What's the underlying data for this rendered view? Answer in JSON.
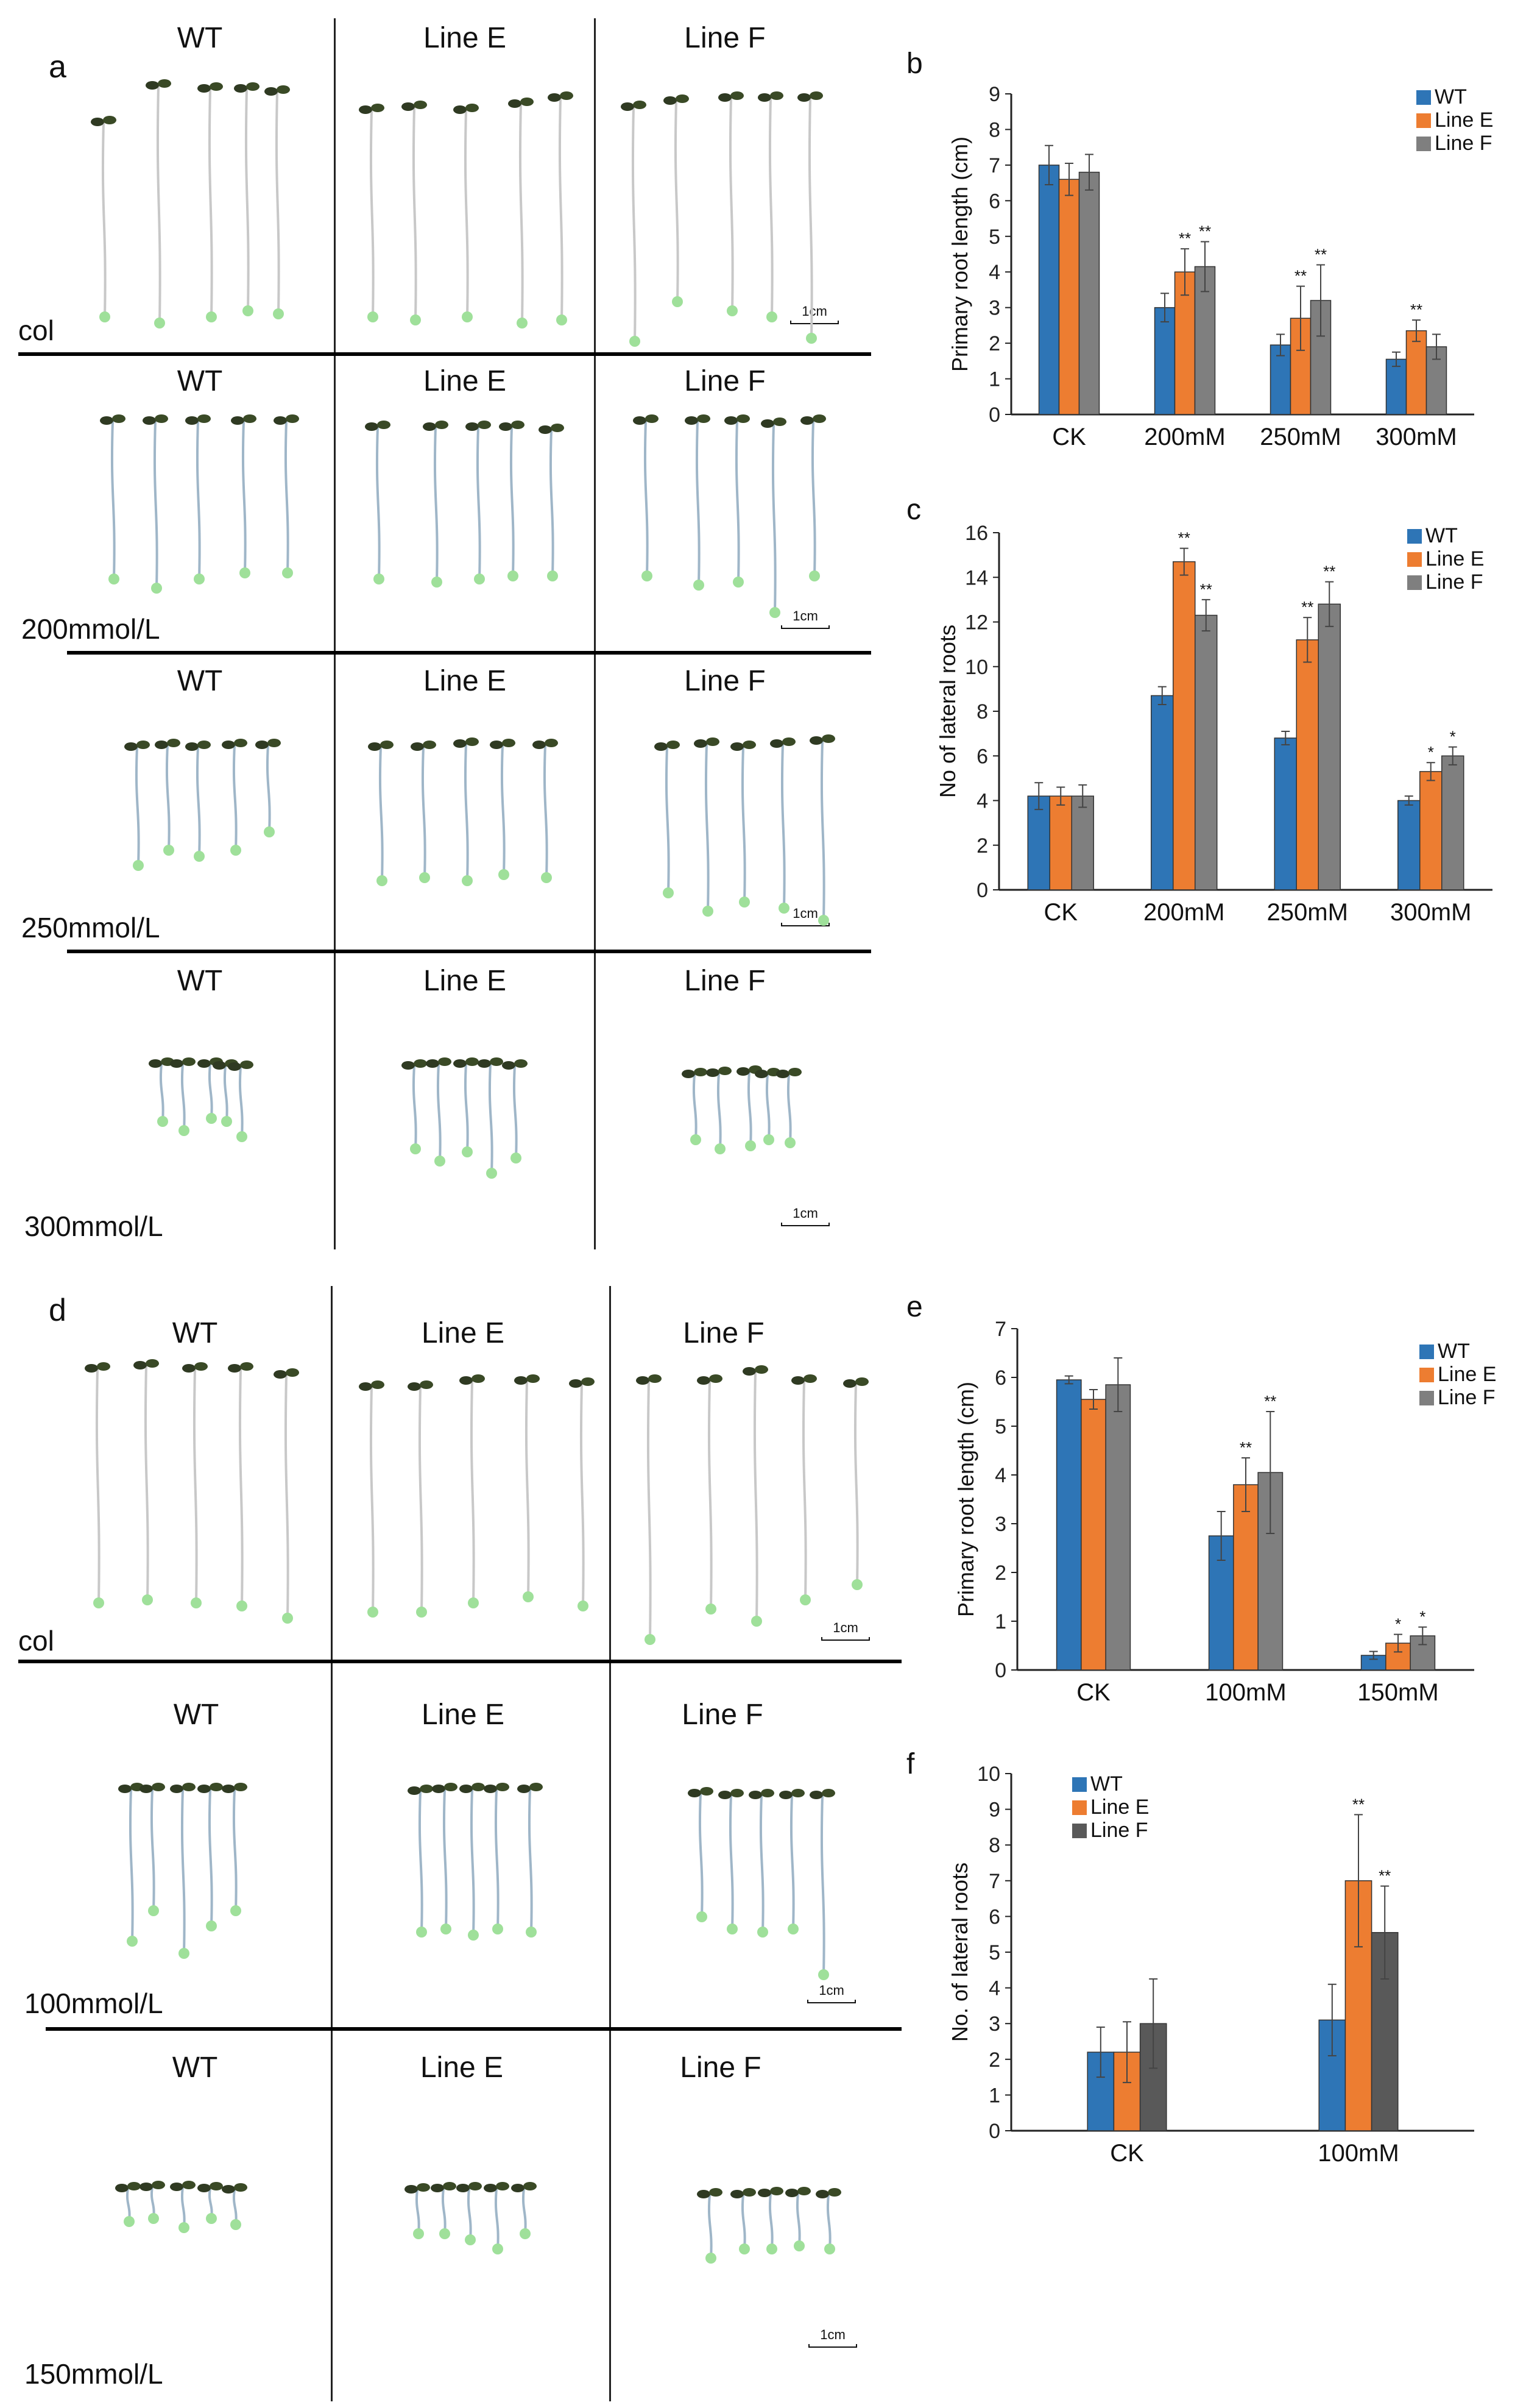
{
  "panels": {
    "a": {
      "letter": "a",
      "row_labels": [
        "col",
        "200mmol/L",
        "250mmol/L",
        "300mmol/L"
      ]
    },
    "d": {
      "letter": "d",
      "row_labels": [
        "col",
        "100mmol/L",
        "150mmol/L"
      ]
    }
  },
  "column_labels": [
    "WT",
    "Line E",
    "Line F"
  ],
  "scale_label": "1cm",
  "chart_data": [
    {
      "id": "b",
      "letter": "b",
      "type": "bar",
      "ylabel": "Primary root length (cm)",
      "ylim": [
        0,
        9
      ],
      "yticks": [
        0,
        1,
        2,
        3,
        4,
        5,
        6,
        7,
        8,
        9
      ],
      "categories": [
        "CK",
        "200mM",
        "250mM",
        "300mM"
      ],
      "series": [
        {
          "name": "WT",
          "color": "#2e75b6",
          "values": [
            7.0,
            3.0,
            1.95,
            1.55
          ],
          "errors": [
            0.55,
            0.4,
            0.3,
            0.2
          ],
          "sig": [
            "",
            "",
            "",
            ""
          ]
        },
        {
          "name": "Line E",
          "color": "#ed7d31",
          "values": [
            6.6,
            4.0,
            2.7,
            2.35
          ],
          "errors": [
            0.45,
            0.65,
            0.9,
            0.3
          ],
          "sig": [
            "",
            "**",
            "**",
            "**"
          ]
        },
        {
          "name": "Line F",
          "color": "#7f7f7f",
          "values": [
            6.8,
            4.15,
            3.2,
            1.9
          ],
          "errors": [
            0.5,
            0.7,
            1.0,
            0.35
          ],
          "sig": [
            "",
            "**",
            "**",
            ""
          ]
        }
      ]
    },
    {
      "id": "c",
      "letter": "c",
      "type": "bar",
      "ylabel": "No of lateral roots",
      "ylim": [
        0,
        16
      ],
      "yticks": [
        0,
        2,
        4,
        6,
        8,
        10,
        12,
        14,
        16
      ],
      "categories": [
        "CK",
        "200mM",
        "250mM",
        "300mM"
      ],
      "series": [
        {
          "name": "WT",
          "color": "#2e75b6",
          "values": [
            4.2,
            8.7,
            6.8,
            4.0
          ],
          "errors": [
            0.6,
            0.4,
            0.3,
            0.2
          ],
          "sig": [
            "",
            "",
            "",
            ""
          ]
        },
        {
          "name": "Line E",
          "color": "#ed7d31",
          "values": [
            4.2,
            14.7,
            11.2,
            5.3
          ],
          "errors": [
            0.4,
            0.6,
            1.0,
            0.4
          ],
          "sig": [
            "",
            "**",
            "**",
            "*"
          ]
        },
        {
          "name": "Line F",
          "color": "#7f7f7f",
          "values": [
            4.2,
            12.3,
            12.8,
            6.0
          ],
          "errors": [
            0.5,
            0.7,
            1.0,
            0.4
          ],
          "sig": [
            "",
            "**",
            "**",
            "*"
          ]
        }
      ]
    },
    {
      "id": "e",
      "letter": "e",
      "type": "bar",
      "ylabel": "Primary root length (cm)",
      "ylim": [
        0,
        7
      ],
      "yticks": [
        0,
        1,
        2,
        3,
        4,
        5,
        6,
        7
      ],
      "categories": [
        "CK",
        "100mM",
        "150mM"
      ],
      "series": [
        {
          "name": "WT",
          "color": "#2e75b6",
          "values": [
            5.95,
            2.75,
            0.3
          ],
          "errors": [
            0.08,
            0.5,
            0.08
          ],
          "sig": [
            "",
            "",
            ""
          ]
        },
        {
          "name": "Line E",
          "color": "#ed7d31",
          "values": [
            5.55,
            3.8,
            0.55
          ],
          "errors": [
            0.2,
            0.55,
            0.18
          ],
          "sig": [
            "",
            "**",
            "*"
          ]
        },
        {
          "name": "Line F",
          "color": "#7f7f7f",
          "values": [
            5.85,
            4.05,
            0.7
          ],
          "errors": [
            0.55,
            1.25,
            0.18
          ],
          "sig": [
            "",
            "**",
            "*"
          ]
        }
      ]
    },
    {
      "id": "f",
      "letter": "f",
      "type": "bar",
      "ylabel": "No. of lateral roots",
      "ylim": [
        0,
        10
      ],
      "yticks": [
        0,
        1,
        2,
        3,
        4,
        5,
        6,
        7,
        8,
        9,
        10
      ],
      "categories": [
        "CK",
        "100mM"
      ],
      "series": [
        {
          "name": "WT",
          "color": "#2e75b6",
          "values": [
            2.2,
            3.1
          ],
          "errors": [
            0.7,
            1.0
          ],
          "sig": [
            "",
            ""
          ]
        },
        {
          "name": "Line E",
          "color": "#ed7d31",
          "values": [
            2.2,
            7.0
          ],
          "errors": [
            0.85,
            1.85
          ],
          "sig": [
            "",
            "**"
          ]
        },
        {
          "name": "Line F",
          "color": "#595959",
          "values": [
            3.0,
            5.55
          ],
          "errors": [
            1.25,
            1.3
          ],
          "sig": [
            "",
            "**"
          ]
        }
      ]
    }
  ]
}
